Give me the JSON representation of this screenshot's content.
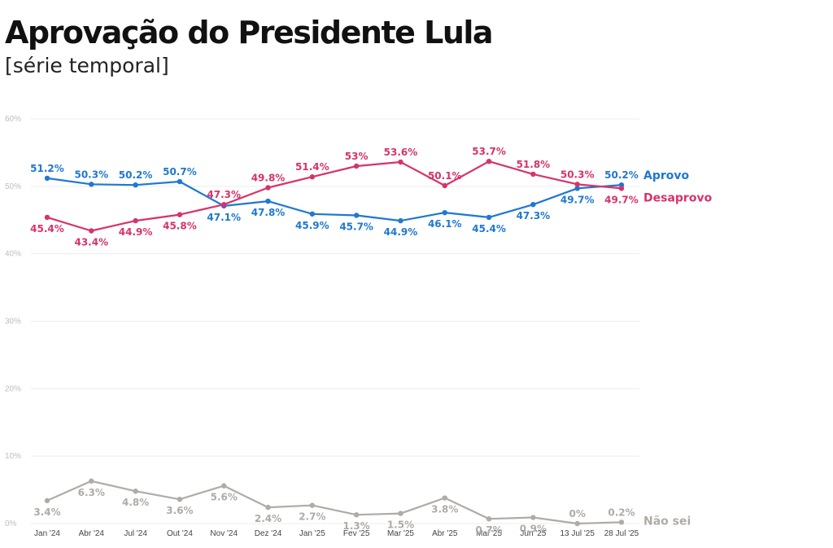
{
  "header": {
    "title": "Aprovação do Presidente Lula",
    "subtitle": "[série temporal]"
  },
  "chart_data": {
    "type": "line",
    "categories": [
      "Jan '24",
      "Abr '24",
      "Jul '24",
      "Out '24",
      "Nov '24",
      "Dez '24",
      "Jan '25",
      "Fev '25",
      "Mar '25",
      "Abr '25",
      "Mai '25",
      "Jun '25",
      "13 Jul '25",
      "28 Jul '25"
    ],
    "ylim": [
      0,
      60
    ],
    "yticks": [
      "0%",
      "10%",
      "20%",
      "30%",
      "40%",
      "50%",
      "60%"
    ],
    "grid": true,
    "legend": "inline-right",
    "series": [
      {
        "name": "Aprovo",
        "color": "#1f78d1",
        "values": [
          51.2,
          50.3,
          50.2,
          50.7,
          47.1,
          47.8,
          45.9,
          45.7,
          44.9,
          46.1,
          45.4,
          47.3,
          49.7,
          50.2
        ],
        "labels": [
          "51.2%",
          "50.3%",
          "50.2%",
          "50.7%",
          "47.1%",
          "47.8%",
          "45.9%",
          "45.7%",
          "44.9%",
          "46.1%",
          "45.4%",
          "47.3%",
          "49.7%",
          "50.2%"
        ]
      },
      {
        "name": "Desaprovo",
        "color": "#d6336c",
        "values": [
          45.4,
          43.4,
          44.9,
          45.8,
          47.3,
          49.8,
          51.4,
          53,
          53.6,
          50.1,
          53.7,
          51.8,
          50.3,
          49.7
        ],
        "labels": [
          "45.4%",
          "43.4%",
          "44.9%",
          "45.8%",
          "47.3%",
          "49.8%",
          "51.4%",
          "53%",
          "53.6%",
          "50.1%",
          "53.7%",
          "51.8%",
          "50.3%",
          "49.7%"
        ]
      },
      {
        "name": "Não sei",
        "color": "#b0aba6",
        "values": [
          3.4,
          6.3,
          4.8,
          3.6,
          5.6,
          2.4,
          2.7,
          1.3,
          1.5,
          3.8,
          0.7,
          0.9,
          0,
          0.2
        ],
        "labels": [
          "3.4%",
          "6.3%",
          "4.8%",
          "3.6%",
          "5.6%",
          "2.4%",
          "2.7%",
          "1.3%",
          "1.5%",
          "3.8%",
          "0.7%",
          "0.9%",
          "0%",
          "0.2%"
        ]
      }
    ]
  }
}
